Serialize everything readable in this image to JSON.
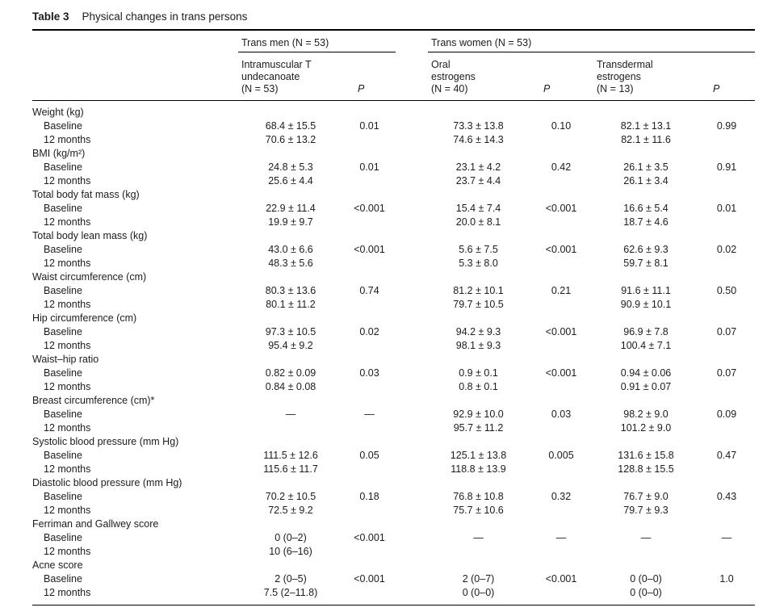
{
  "caption": {
    "label": "Table 3",
    "title": "Physical changes in trans persons"
  },
  "table": {
    "groups": [
      {
        "label": "Trans men (N = 53)"
      },
      {
        "label": "Trans women (N = 53)"
      }
    ],
    "column_headers": {
      "im_t": "Intramuscular T\nundecanoate\n(N = 53)",
      "p1": "P",
      "oral": "Oral\nestrogens\n(N = 40)",
      "p2": "P",
      "transdermal": "Transdermal\nestrogens\n(N = 13)",
      "p3": "P"
    },
    "sections": [
      {
        "label": "Weight (kg)",
        "rows": [
          {
            "label": "Baseline",
            "values": [
              "68.4 ± 15.5",
              "0.01",
              "73.3 ± 13.8",
              "0.10",
              "82.1 ± 13.1",
              "0.99"
            ]
          },
          {
            "label": "12 months",
            "values": [
              "70.6 ± 13.2",
              "",
              "74.6 ± 14.3",
              "",
              "82.1 ± 11.6",
              ""
            ]
          }
        ]
      },
      {
        "label": "BMI (kg/m²)",
        "rows": [
          {
            "label": "Baseline",
            "values": [
              "24.8 ± 5.3",
              "0.01",
              "23.1 ± 4.2",
              "0.42",
              "26.1 ± 3.5",
              "0.91"
            ]
          },
          {
            "label": "12 months",
            "values": [
              "25.6 ± 4.4",
              "",
              "23.7 ± 4.4",
              "",
              "26.1 ± 3.4",
              ""
            ]
          }
        ]
      },
      {
        "label": "Total body fat mass (kg)",
        "rows": [
          {
            "label": "Baseline",
            "values": [
              "22.9 ± 11.4",
              "<0.001",
              "15.4 ± 7.4",
              "<0.001",
              "16.6 ± 5.4",
              "0.01"
            ]
          },
          {
            "label": "12 months",
            "values": [
              "19.9 ± 9.7",
              "",
              "20.0 ± 8.1",
              "",
              "18.7 ± 4.6",
              ""
            ]
          }
        ]
      },
      {
        "label": "Total body lean mass (kg)",
        "rows": [
          {
            "label": "Baseline",
            "values": [
              "43.0 ± 6.6",
              "<0.001",
              "5.6 ± 7.5",
              "<0.001",
              "62.6 ± 9.3",
              "0.02"
            ]
          },
          {
            "label": "12 months",
            "values": [
              "48.3 ± 5.6",
              "",
              "5.3 ± 8.0",
              "",
              "59.7 ± 8.1",
              ""
            ]
          }
        ]
      },
      {
        "label": "Waist circumference (cm)",
        "rows": [
          {
            "label": "Baseline",
            "values": [
              "80.3 ± 13.6",
              "0.74",
              "81.2 ± 10.1",
              "0.21",
              "91.6 ± 11.1",
              "0.50"
            ]
          },
          {
            "label": "12 months",
            "values": [
              "80.1 ± 11.2",
              "",
              "79.7 ± 10.5",
              "",
              "90.9 ± 10.1",
              ""
            ]
          }
        ]
      },
      {
        "label": "Hip circumference (cm)",
        "rows": [
          {
            "label": "Baseline",
            "values": [
              "97.3 ± 10.5",
              "0.02",
              "94.2 ± 9.3",
              "<0.001",
              "96.9 ± 7.8",
              "0.07"
            ]
          },
          {
            "label": "12 months",
            "values": [
              "95.4 ± 9.2",
              "",
              "98.1 ± 9.3",
              "",
              "100.4 ± 7.1",
              ""
            ]
          }
        ]
      },
      {
        "label": "Waist–hip ratio",
        "rows": [
          {
            "label": "Baseline",
            "values": [
              "0.82 ± 0.09",
              "0.03",
              "0.9 ± 0.1",
              "<0.001",
              "0.94 ± 0.06",
              "0.07"
            ]
          },
          {
            "label": "12 months",
            "values": [
              "0.84 ± 0.08",
              "",
              "0.8 ± 0.1",
              "",
              "0.91 ± 0.07",
              ""
            ]
          }
        ]
      },
      {
        "label": "Breast circumference (cm)*",
        "rows": [
          {
            "label": "Baseline",
            "values": [
              "—",
              "—",
              "92.9 ± 10.0",
              "0.03",
              "98.2 ± 9.0",
              "0.09"
            ]
          },
          {
            "label": "12 months",
            "values": [
              "",
              "",
              "95.7 ± 11.2",
              "",
              "101.2 ± 9.0",
              ""
            ]
          }
        ]
      },
      {
        "label": "Systolic blood pressure (mm Hg)",
        "rows": [
          {
            "label": "Baseline",
            "values": [
              "111.5 ± 12.6",
              "0.05",
              "125.1 ± 13.8",
              "0.005",
              "131.6 ± 15.8",
              "0.47"
            ]
          },
          {
            "label": "12 months",
            "values": [
              "115.6 ± 11.7",
              "",
              "118.8 ± 13.9",
              "",
              "128.8 ± 15.5",
              ""
            ]
          }
        ]
      },
      {
        "label": "Diastolic blood pressure (mm Hg)",
        "rows": [
          {
            "label": "Baseline",
            "values": [
              "70.2 ± 10.5",
              "0.18",
              "76.8 ± 10.8",
              "0.32",
              "76.7 ± 9.0",
              "0.43"
            ]
          },
          {
            "label": "12 months",
            "values": [
              "72.5 ± 9.2",
              "",
              "75.7 ± 10.6",
              "",
              "79.7 ± 9.3",
              ""
            ]
          }
        ]
      },
      {
        "label": "Ferriman and Gallwey score",
        "rows": [
          {
            "label": "Baseline",
            "values": [
              "0 (0–2)",
              "<0.001",
              "—",
              "—",
              "—",
              "—"
            ]
          },
          {
            "label": "12 months",
            "values": [
              "10 (6–16)",
              "",
              "",
              "",
              "",
              ""
            ]
          }
        ]
      },
      {
        "label": "Acne score",
        "rows": [
          {
            "label": "Baseline",
            "values": [
              "2 (0–5)",
              "<0.001",
              "2 (0–7)",
              "<0.001",
              "0 (0–0)",
              "1.0"
            ]
          },
          {
            "label": "12 months",
            "values": [
              "7.5 (2–11.8)",
              "",
              "0 (0–0)",
              "",
              "0 (0–0)",
              ""
            ]
          }
        ]
      }
    ]
  }
}
